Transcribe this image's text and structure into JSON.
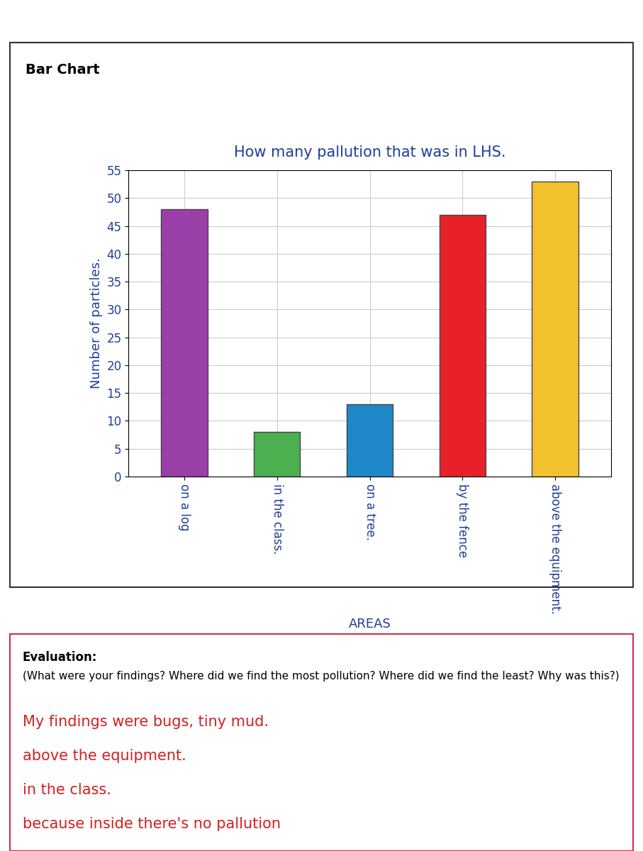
{
  "chart_data": {
    "type": "bar",
    "title": "How many pallution that was in LHS.",
    "x_label": "AREAS",
    "y_label": "Number of particles.",
    "categories": [
      "on a log",
      "in the class.",
      "on a tree.",
      "by the fence",
      "above the equipment."
    ],
    "values": [
      48,
      8,
      13,
      47,
      53
    ],
    "colors": [
      "#9b3fa8",
      "#4caf50",
      "#1e88c8",
      "#e8202a",
      "#f2c12e"
    ],
    "ylim": [
      0,
      55
    ],
    "yticks": [
      0,
      5,
      10,
      15,
      20,
      25,
      30,
      35,
      40,
      45,
      50,
      55
    ],
    "grid": true
  },
  "page": {
    "heading": "Bar Chart",
    "evaluation": {
      "heading": "Evaluation:",
      "prompt": "(What were your findings? Where did we find the most pollution? Where did we find the least? Why was this?)",
      "answer": [
        "My findings were bugs, tiny mud.",
        "above the equipment.",
        "in the class.",
        "because inside there's no pallution"
      ]
    }
  }
}
